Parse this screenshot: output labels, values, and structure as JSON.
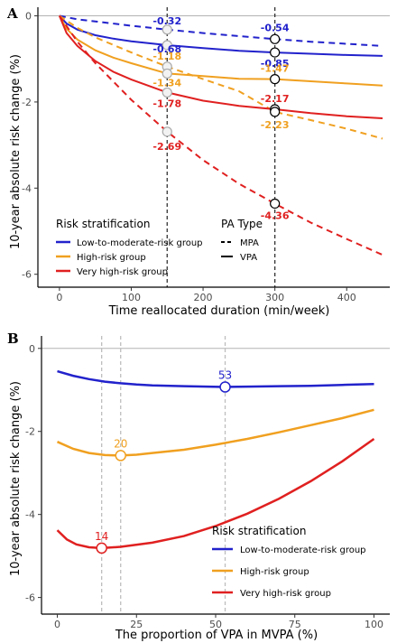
{
  "panels": {
    "a": {
      "label": "A"
    },
    "b": {
      "label": "B"
    }
  },
  "chart_data": [
    {
      "type": "line",
      "panel": "A",
      "title": "",
      "xlabel": "Time reallocated duration (min/week)",
      "ylabel": "10-year absolute risk change (%)",
      "xlim": [
        -30,
        460
      ],
      "ylim": [
        -6.3,
        0.2
      ],
      "xticks": [
        0,
        100,
        200,
        300,
        400
      ],
      "yticks": [
        0,
        -2,
        -4,
        -6
      ],
      "grid": false,
      "reference_lines": {
        "horizontal_y": 0,
        "vertical_x": [
          150,
          300
        ]
      },
      "series": [
        {
          "group": "Low-to-moderate-risk group",
          "pa_type": "MPA",
          "color": "#2222cc",
          "dash": true,
          "x": [
            0,
            25,
            50,
            100,
            150,
            200,
            250,
            300,
            350,
            400,
            450
          ],
          "y": [
            0,
            -0.08,
            -0.13,
            -0.23,
            -0.32,
            -0.4,
            -0.47,
            -0.54,
            -0.6,
            -0.65,
            -0.7
          ]
        },
        {
          "group": "Low-to-moderate-risk group",
          "pa_type": "VPA",
          "color": "#2222cc",
          "dash": false,
          "x": [
            0,
            10,
            25,
            50,
            75,
            100,
            150,
            200,
            250,
            300,
            350,
            400,
            450
          ],
          "y": [
            0,
            -0.18,
            -0.32,
            -0.45,
            -0.53,
            -0.59,
            -0.68,
            -0.75,
            -0.81,
            -0.85,
            -0.88,
            -0.91,
            -0.93
          ]
        },
        {
          "group": "High-risk group",
          "pa_type": "MPA",
          "color": "#f0a020",
          "dash": true,
          "x": [
            0,
            25,
            50,
            100,
            150,
            200,
            250,
            300,
            350,
            400,
            450
          ],
          "y": [
            0,
            -0.28,
            -0.5,
            -0.85,
            -1.18,
            -1.47,
            -1.75,
            -2.23,
            -2.42,
            -2.62,
            -2.85
          ]
        },
        {
          "group": "High-risk group",
          "pa_type": "VPA",
          "color": "#f0a020",
          "dash": false,
          "x": [
            0,
            10,
            25,
            50,
            75,
            100,
            150,
            200,
            250,
            300,
            350,
            400,
            450
          ],
          "y": [
            0,
            -0.3,
            -0.55,
            -0.8,
            -0.97,
            -1.1,
            -1.34,
            -1.4,
            -1.46,
            -1.47,
            -1.52,
            -1.57,
            -1.62
          ]
        },
        {
          "group": "Very high-risk group",
          "pa_type": "MPA",
          "color": "#e02020",
          "dash": true,
          "x": [
            0,
            25,
            50,
            100,
            150,
            200,
            250,
            300,
            350,
            400,
            450
          ],
          "y": [
            0,
            -0.6,
            -1.1,
            -1.95,
            -2.69,
            -3.35,
            -3.9,
            -4.36,
            -4.8,
            -5.18,
            -5.55
          ]
        },
        {
          "group": "Very high-risk group",
          "pa_type": "VPA",
          "color": "#e02020",
          "dash": false,
          "x": [
            0,
            10,
            25,
            50,
            75,
            100,
            150,
            200,
            250,
            300,
            350,
            400,
            450
          ],
          "y": [
            0,
            -0.4,
            -0.7,
            -1.05,
            -1.3,
            -1.48,
            -1.78,
            -1.97,
            -2.09,
            -2.17,
            -2.26,
            -2.33,
            -2.38
          ]
        }
      ],
      "annotations": [
        {
          "text": "-0.32",
          "x": 150,
          "y": -0.32,
          "color": "#2222cc"
        },
        {
          "text": "-0.68",
          "x": 150,
          "y": -0.68,
          "color": "#2222cc"
        },
        {
          "text": "-1.18",
          "x": 150,
          "y": -1.18,
          "color": "#f0a020"
        },
        {
          "text": "-1.34",
          "x": 150,
          "y": -1.34,
          "color": "#f0a020"
        },
        {
          "text": "-1.78",
          "x": 150,
          "y": -1.78,
          "color": "#e02020"
        },
        {
          "text": "-2.69",
          "x": 150,
          "y": -2.69,
          "color": "#e02020"
        },
        {
          "text": "-0.54",
          "x": 300,
          "y": -0.54,
          "color": "#2222cc"
        },
        {
          "text": "-0.85",
          "x": 300,
          "y": -0.85,
          "color": "#2222cc"
        },
        {
          "text": "-1.47",
          "x": 300,
          "y": -1.47,
          "color": "#f0a020"
        },
        {
          "text": "-2.17",
          "x": 300,
          "y": -2.17,
          "color": "#e02020"
        },
        {
          "text": "-2.23",
          "x": 300,
          "y": -2.23,
          "color": "#f0a020"
        },
        {
          "text": "-4.36",
          "x": 300,
          "y": -4.36,
          "color": "#e02020"
        }
      ],
      "legend": {
        "placement": "bottom-left",
        "risk_title": "Risk stratification",
        "risk_items": [
          {
            "label": "Low-to-moderate-risk group",
            "color": "#2222cc"
          },
          {
            "label": "High-risk group",
            "color": "#f0a020"
          },
          {
            "label": "Very high-risk group",
            "color": "#e02020"
          }
        ],
        "pa_title": "PA Type",
        "pa_items": [
          {
            "label": "MPA",
            "dash": true
          },
          {
            "label": "VPA",
            "dash": false
          }
        ]
      }
    },
    {
      "type": "line",
      "panel": "B",
      "title": "",
      "xlabel": "The proportion of VPA in MVPA (%)",
      "ylabel": "10-year absolute risk change (%)",
      "xlim": [
        -5,
        105
      ],
      "ylim": [
        -6.4,
        0.3
      ],
      "xticks": [
        0,
        25,
        50,
        75,
        100
      ],
      "yticks": [
        0,
        -2,
        -4,
        -6
      ],
      "grid": false,
      "reference_lines": {
        "horizontal_y": 0,
        "vertical_x": [
          14,
          20,
          53
        ]
      },
      "series": [
        {
          "name": "Low-to-moderate-risk group",
          "color": "#2222cc",
          "x": [
            0,
            5,
            10,
            15,
            20,
            25,
            30,
            40,
            53,
            60,
            70,
            80,
            90,
            100
          ],
          "y": [
            -0.55,
            -0.66,
            -0.74,
            -0.8,
            -0.84,
            -0.87,
            -0.89,
            -0.91,
            -0.93,
            -0.92,
            -0.91,
            -0.9,
            -0.88,
            -0.86
          ]
        },
        {
          "name": "High-risk group",
          "color": "#f0a020",
          "x": [
            0,
            5,
            10,
            15,
            20,
            25,
            30,
            40,
            50,
            60,
            70,
            80,
            90,
            100
          ],
          "y": [
            -2.25,
            -2.42,
            -2.52,
            -2.57,
            -2.58,
            -2.56,
            -2.52,
            -2.44,
            -2.32,
            -2.18,
            -2.02,
            -1.85,
            -1.68,
            -1.48
          ]
        },
        {
          "name": "Very high-risk group",
          "color": "#e02020",
          "x": [
            0,
            3,
            6,
            10,
            14,
            20,
            30,
            40,
            50,
            60,
            70,
            80,
            90,
            100
          ],
          "y": [
            -4.38,
            -4.6,
            -4.72,
            -4.79,
            -4.81,
            -4.78,
            -4.68,
            -4.52,
            -4.28,
            -3.98,
            -3.62,
            -3.2,
            -2.72,
            -2.18
          ]
        }
      ],
      "optima": [
        {
          "text": "53",
          "x": 53,
          "y": -0.93,
          "color": "#2222cc"
        },
        {
          "text": "20",
          "x": 20,
          "y": -2.58,
          "color": "#f0a020"
        },
        {
          "text": "14",
          "x": 14,
          "y": -4.81,
          "color": "#e02020"
        }
      ],
      "legend": {
        "placement": "bottom-right",
        "title": "Risk stratification",
        "items": [
          {
            "label": "Low-to-moderate-risk group",
            "color": "#2222cc"
          },
          {
            "label": "High-risk group",
            "color": "#f0a020"
          },
          {
            "label": "Very high-risk group",
            "color": "#e02020"
          }
        ]
      }
    }
  ]
}
